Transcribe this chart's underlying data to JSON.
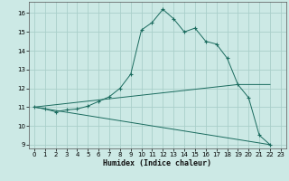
{
  "xlabel": "Humidex (Indice chaleur)",
  "xlim": [
    -0.5,
    23.5
  ],
  "ylim": [
    8.8,
    16.6
  ],
  "yticks": [
    9,
    10,
    11,
    12,
    13,
    14,
    15,
    16
  ],
  "xticks": [
    0,
    1,
    2,
    3,
    4,
    5,
    6,
    7,
    8,
    9,
    10,
    11,
    12,
    13,
    14,
    15,
    16,
    17,
    18,
    19,
    20,
    21,
    22,
    23
  ],
  "bg_color": "#cce9e5",
  "grid_color": "#aacfca",
  "line_color": "#1a6b5e",
  "line1_x": [
    0,
    1,
    2,
    3,
    4,
    5,
    6,
    7,
    8,
    9,
    10,
    11,
    12,
    13,
    14,
    15,
    16,
    17,
    18,
    19,
    20,
    21,
    22
  ],
  "line1_y": [
    11.0,
    10.9,
    10.75,
    10.85,
    10.9,
    11.05,
    11.3,
    11.55,
    12.0,
    12.75,
    15.1,
    15.5,
    16.2,
    15.7,
    15.0,
    15.2,
    14.5,
    14.35,
    13.6,
    12.2,
    11.5,
    9.5,
    9.0
  ],
  "line2_x": [
    0,
    22
  ],
  "line2_y": [
    11.0,
    9.0
  ],
  "line3_x": [
    0,
    19,
    22
  ],
  "line3_y": [
    11.0,
    12.2,
    12.2
  ],
  "xlabel_fontsize": 6,
  "tick_fontsize": 5
}
